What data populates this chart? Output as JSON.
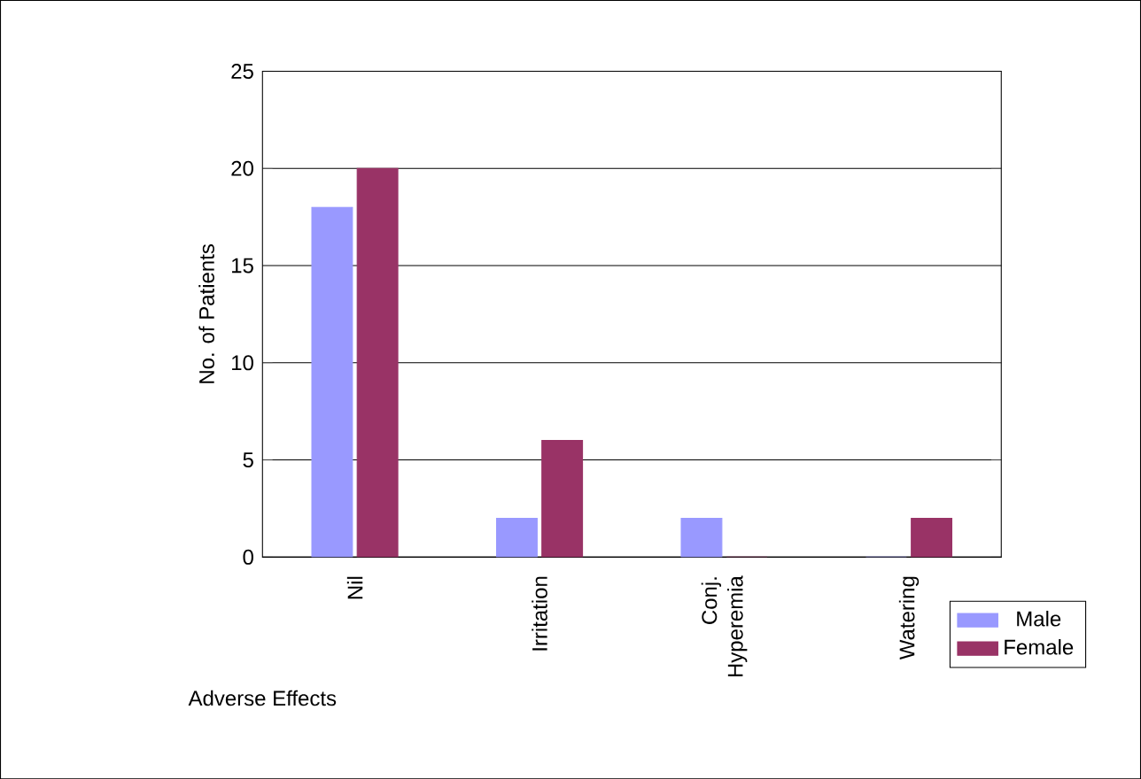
{
  "chart_data": {
    "type": "bar",
    "xlabel": "Adverse Effects",
    "ylabel": "No. of Patients",
    "categories": [
      "Nil",
      "Irritation",
      "Conj. Hyperemia",
      "Watering"
    ],
    "series": [
      {
        "name": "Male",
        "color": "#9999ff",
        "values": [
          18,
          2,
          2,
          0
        ]
      },
      {
        "name": "Female",
        "color": "#993366",
        "values": [
          20,
          6,
          0,
          2
        ]
      }
    ],
    "ylim": [
      0,
      25
    ],
    "yticks": [
      0,
      5,
      10,
      15,
      20,
      25
    ],
    "grid": "y",
    "legend": "bottom right"
  }
}
